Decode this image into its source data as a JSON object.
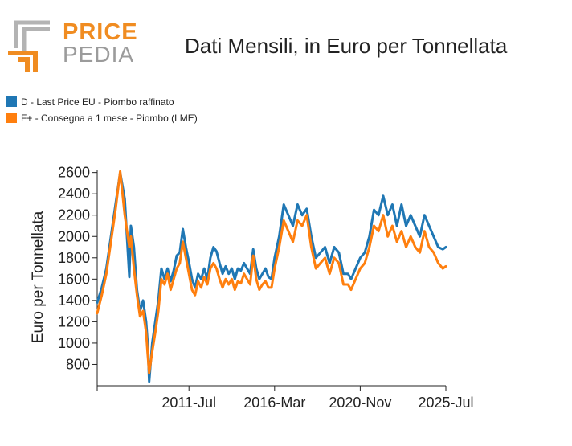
{
  "brand": {
    "word1": "PRICE",
    "word2": "PEDIA"
  },
  "chart_data": {
    "type": "line",
    "title": "Dati Mensili, in Euro per Tonnellata",
    "xlabel": "",
    "ylabel": "Euro per Tonnellata",
    "x_start": "2006-Jul",
    "x_end": "2025-Jul",
    "xticks": [
      "2011-Jul",
      "2016-Mar",
      "2020-Nov",
      "2025-Jul"
    ],
    "yticks": [
      800,
      1000,
      1200,
      1400,
      1600,
      1800,
      2000,
      2200,
      2400,
      2600
    ],
    "ylim": [
      600,
      2620
    ],
    "legend_position": "top-left",
    "series": [
      {
        "name": "D - Last Price EU - Piombo raffinato",
        "color": "#1f77b4",
        "points": [
          [
            "2006-07",
            1380
          ],
          [
            "2006-10",
            1520
          ],
          [
            "2007-01",
            1700
          ],
          [
            "2007-04",
            2000
          ],
          [
            "2007-07",
            2300
          ],
          [
            "2007-10",
            2600
          ],
          [
            "2008-01",
            2350
          ],
          [
            "2008-04",
            1620
          ],
          [
            "2008-05",
            2100
          ],
          [
            "2008-07",
            1900
          ],
          [
            "2008-09",
            1500
          ],
          [
            "2008-11",
            1300
          ],
          [
            "2009-01",
            1400
          ],
          [
            "2009-03",
            1200
          ],
          [
            "2009-04",
            1000
          ],
          [
            "2009-05",
            640
          ],
          [
            "2009-07",
            1000
          ],
          [
            "2009-09",
            1200
          ],
          [
            "2009-11",
            1400
          ],
          [
            "2010-01",
            1700
          ],
          [
            "2010-03",
            1600
          ],
          [
            "2010-05",
            1700
          ],
          [
            "2010-07",
            1580
          ],
          [
            "2010-09",
            1680
          ],
          [
            "2010-11",
            1820
          ],
          [
            "2011-01",
            1850
          ],
          [
            "2011-03",
            2070
          ],
          [
            "2011-05",
            1900
          ],
          [
            "2011-07",
            1760
          ],
          [
            "2011-09",
            1600
          ],
          [
            "2011-11",
            1520
          ],
          [
            "2012-01",
            1650
          ],
          [
            "2012-03",
            1600
          ],
          [
            "2012-05",
            1700
          ],
          [
            "2012-07",
            1600
          ],
          [
            "2012-09",
            1800
          ],
          [
            "2012-11",
            1900
          ],
          [
            "2013-01",
            1860
          ],
          [
            "2013-03",
            1750
          ],
          [
            "2013-05",
            1650
          ],
          [
            "2013-07",
            1720
          ],
          [
            "2013-09",
            1650
          ],
          [
            "2013-11",
            1700
          ],
          [
            "2014-01",
            1600
          ],
          [
            "2014-03",
            1700
          ],
          [
            "2014-05",
            1680
          ],
          [
            "2014-07",
            1750
          ],
          [
            "2014-09",
            1700
          ],
          [
            "2014-11",
            1650
          ],
          [
            "2015-01",
            1880
          ],
          [
            "2015-03",
            1700
          ],
          [
            "2015-05",
            1600
          ],
          [
            "2015-07",
            1650
          ],
          [
            "2015-09",
            1700
          ],
          [
            "2015-11",
            1620
          ],
          [
            "2016-01",
            1600
          ],
          [
            "2016-03",
            1800
          ],
          [
            "2016-06",
            2000
          ],
          [
            "2016-09",
            2300
          ],
          [
            "2016-12",
            2200
          ],
          [
            "2017-03",
            2100
          ],
          [
            "2017-06",
            2300
          ],
          [
            "2017-09",
            2200
          ],
          [
            "2017-12",
            2260
          ],
          [
            "2018-03",
            2000
          ],
          [
            "2018-06",
            1800
          ],
          [
            "2018-09",
            1850
          ],
          [
            "2018-12",
            1900
          ],
          [
            "2019-03",
            1750
          ],
          [
            "2019-06",
            1900
          ],
          [
            "2019-09",
            1850
          ],
          [
            "2019-12",
            1650
          ],
          [
            "2020-03",
            1650
          ],
          [
            "2020-05",
            1600
          ],
          [
            "2020-08",
            1700
          ],
          [
            "2020-11",
            1800
          ],
          [
            "2021-02",
            1850
          ],
          [
            "2021-05",
            2000
          ],
          [
            "2021-08",
            2250
          ],
          [
            "2021-11",
            2200
          ],
          [
            "2022-02",
            2380
          ],
          [
            "2022-05",
            2200
          ],
          [
            "2022-08",
            2300
          ],
          [
            "2022-11",
            2100
          ],
          [
            "2023-02",
            2300
          ],
          [
            "2023-05",
            2100
          ],
          [
            "2023-08",
            2200
          ],
          [
            "2023-11",
            2100
          ],
          [
            "2024-02",
            2000
          ],
          [
            "2024-05",
            2200
          ],
          [
            "2024-08",
            2100
          ],
          [
            "2024-11",
            2000
          ],
          [
            "2025-02",
            1900
          ],
          [
            "2025-05",
            1880
          ],
          [
            "2025-07",
            1900
          ]
        ]
      },
      {
        "name": "F+ - Consegna a 1 mese - Piombo (LME)",
        "color": "#ff7f0e",
        "points": [
          [
            "2006-07",
            1280
          ],
          [
            "2006-10",
            1450
          ],
          [
            "2007-01",
            1650
          ],
          [
            "2007-04",
            1950
          ],
          [
            "2007-07",
            2250
          ],
          [
            "2007-10",
            2610
          ],
          [
            "2008-01",
            2200
          ],
          [
            "2008-04",
            1900
          ],
          [
            "2008-05",
            2000
          ],
          [
            "2008-07",
            1700
          ],
          [
            "2008-09",
            1450
          ],
          [
            "2008-11",
            1250
          ],
          [
            "2009-01",
            1300
          ],
          [
            "2009-03",
            1100
          ],
          [
            "2009-04",
            900
          ],
          [
            "2009-05",
            720
          ],
          [
            "2009-07",
            920
          ],
          [
            "2009-09",
            1100
          ],
          [
            "2009-11",
            1300
          ],
          [
            "2010-01",
            1600
          ],
          [
            "2010-03",
            1550
          ],
          [
            "2010-05",
            1650
          ],
          [
            "2010-07",
            1500
          ],
          [
            "2010-09",
            1600
          ],
          [
            "2010-11",
            1700
          ],
          [
            "2011-01",
            1750
          ],
          [
            "2011-03",
            1950
          ],
          [
            "2011-05",
            1800
          ],
          [
            "2011-07",
            1650
          ],
          [
            "2011-09",
            1500
          ],
          [
            "2011-11",
            1450
          ],
          [
            "2012-01",
            1580
          ],
          [
            "2012-03",
            1520
          ],
          [
            "2012-05",
            1620
          ],
          [
            "2012-07",
            1550
          ],
          [
            "2012-09",
            1700
          ],
          [
            "2012-11",
            1750
          ],
          [
            "2013-01",
            1700
          ],
          [
            "2013-03",
            1600
          ],
          [
            "2013-05",
            1520
          ],
          [
            "2013-07",
            1600
          ],
          [
            "2013-09",
            1550
          ],
          [
            "2013-11",
            1600
          ],
          [
            "2014-01",
            1500
          ],
          [
            "2014-03",
            1580
          ],
          [
            "2014-05",
            1560
          ],
          [
            "2014-07",
            1650
          ],
          [
            "2014-09",
            1600
          ],
          [
            "2014-11",
            1550
          ],
          [
            "2015-01",
            1820
          ],
          [
            "2015-03",
            1600
          ],
          [
            "2015-05",
            1500
          ],
          [
            "2015-07",
            1550
          ],
          [
            "2015-09",
            1580
          ],
          [
            "2015-11",
            1520
          ],
          [
            "2016-01",
            1520
          ],
          [
            "2016-03",
            1700
          ],
          [
            "2016-06",
            1900
          ],
          [
            "2016-09",
            2150
          ],
          [
            "2016-12",
            2050
          ],
          [
            "2017-03",
            1950
          ],
          [
            "2017-06",
            2150
          ],
          [
            "2017-09",
            2100
          ],
          [
            "2017-12",
            2200
          ],
          [
            "2018-03",
            1900
          ],
          [
            "2018-06",
            1700
          ],
          [
            "2018-09",
            1750
          ],
          [
            "2018-12",
            1800
          ],
          [
            "2019-03",
            1650
          ],
          [
            "2019-06",
            1800
          ],
          [
            "2019-09",
            1750
          ],
          [
            "2019-12",
            1550
          ],
          [
            "2020-03",
            1550
          ],
          [
            "2020-05",
            1500
          ],
          [
            "2020-08",
            1600
          ],
          [
            "2020-11",
            1700
          ],
          [
            "2021-02",
            1750
          ],
          [
            "2021-05",
            1900
          ],
          [
            "2021-08",
            2100
          ],
          [
            "2021-11",
            2050
          ],
          [
            "2022-02",
            2200
          ],
          [
            "2022-05",
            2000
          ],
          [
            "2022-08",
            2100
          ],
          [
            "2022-11",
            1950
          ],
          [
            "2023-02",
            2050
          ],
          [
            "2023-05",
            1900
          ],
          [
            "2023-08",
            2000
          ],
          [
            "2023-11",
            1900
          ],
          [
            "2024-02",
            1850
          ],
          [
            "2024-05",
            2050
          ],
          [
            "2024-08",
            1900
          ],
          [
            "2024-11",
            1850
          ],
          [
            "2025-02",
            1750
          ],
          [
            "2025-05",
            1700
          ],
          [
            "2025-07",
            1720
          ]
        ]
      }
    ]
  }
}
